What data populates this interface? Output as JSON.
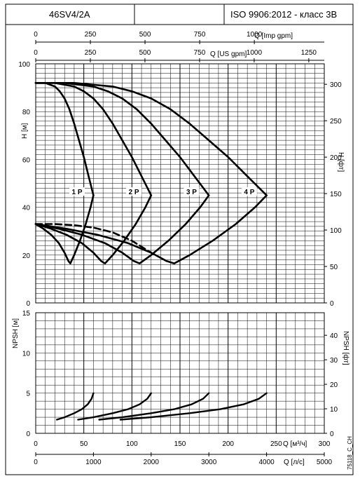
{
  "header": {
    "model": "46SV4/2A",
    "standard": "ISO 9906:2012 - класс 3В"
  },
  "footer_code": "75118_C_CH",
  "chart_data": [
    {
      "type": "line",
      "title": "",
      "xlabel": "Q [м³/ч]",
      "ylabel": "H [м]",
      "y2label": "H [фт]",
      "xlim": [
        0,
        300
      ],
      "ylim": [
        0,
        100
      ],
      "y2lim": [
        0,
        328.1
      ],
      "grid": true,
      "top_axes": [
        {
          "label": "Q [Imp gpm]",
          "lim": [
            0,
            1320
          ],
          "ticks": [
            0,
            250,
            500,
            750,
            1000
          ]
        },
        {
          "label": "Q [US gpm]",
          "lim": [
            0,
            1320.9
          ],
          "ticks": [
            0,
            250,
            500,
            750,
            1000,
            1250
          ]
        }
      ],
      "y_ticks": [
        0,
        20,
        40,
        60,
        80,
        100
      ],
      "y2_ticks": [
        0,
        50,
        100,
        150,
        200,
        250,
        300
      ],
      "series": [
        {
          "name": "1 P",
          "style": "head",
          "x": [
            0,
            10,
            20,
            25,
            30,
            35,
            40,
            45,
            50,
            55,
            60
          ],
          "y": [
            92,
            92,
            90.5,
            88.5,
            85.5,
            81,
            75,
            68,
            61,
            53,
            45
          ]
        },
        {
          "name": "2 P",
          "style": "head",
          "x": [
            0,
            20,
            40,
            50,
            60,
            70,
            80,
            90,
            100,
            110,
            120
          ],
          "y": [
            92,
            92,
            90.5,
            88.5,
            85.5,
            81,
            75,
            68,
            61,
            53,
            45
          ]
        },
        {
          "name": "3 P",
          "style": "head",
          "x": [
            0,
            30,
            60,
            75,
            90,
            105,
            120,
            135,
            150,
            165,
            180
          ],
          "y": [
            92,
            92,
            90.5,
            88.5,
            85.5,
            81,
            75,
            68,
            61,
            53,
            45
          ]
        },
        {
          "name": "4 P",
          "style": "head",
          "x": [
            0,
            40,
            80,
            100,
            120,
            140,
            160,
            180,
            200,
            220,
            240
          ],
          "y": [
            92,
            92,
            90.5,
            88.5,
            85.5,
            81,
            75,
            68,
            61,
            53,
            45
          ]
        },
        {
          "name": "",
          "style": "efficiency",
          "x": [
            0,
            8,
            16,
            24,
            30,
            34,
            36,
            40,
            46,
            52,
            57,
            60
          ],
          "y": [
            33,
            31,
            28.5,
            25,
            21,
            17.5,
            16.5,
            20,
            26,
            33,
            40,
            45
          ]
        },
        {
          "name": "",
          "style": "efficiency",
          "x": [
            0,
            16,
            32,
            48,
            60,
            68,
            72,
            80,
            92,
            104,
            114,
            120
          ],
          "y": [
            33,
            31,
            28.5,
            25,
            21,
            17.5,
            16.5,
            20,
            26,
            33,
            40,
            45
          ]
        },
        {
          "name": "",
          "style": "efficiency",
          "x": [
            0,
            24,
            48,
            72,
            90,
            102,
            108,
            120,
            138,
            156,
            171,
            180
          ],
          "y": [
            33,
            31,
            28.5,
            25,
            21,
            17.5,
            16.5,
            20,
            26,
            33,
            40,
            45
          ]
        },
        {
          "name": "",
          "style": "efficiency",
          "x": [
            0,
            32,
            64,
            96,
            120,
            136,
            144,
            160,
            184,
            208,
            228,
            240
          ],
          "y": [
            33,
            31,
            28.5,
            25,
            21,
            17.5,
            16.5,
            20,
            26,
            33,
            40,
            45
          ]
        },
        {
          "name": "",
          "style": "dashed",
          "x": [
            0,
            20,
            40,
            60,
            80,
            100,
            120
          ],
          "y": [
            33,
            33,
            32.5,
            31.5,
            29.5,
            26,
            21
          ]
        }
      ],
      "curve_labels": [
        {
          "text": "1 P",
          "x": 43,
          "y": 46
        },
        {
          "text": "2 P",
          "x": 102,
          "y": 46
        },
        {
          "text": "3 P",
          "x": 162,
          "y": 46
        },
        {
          "text": "4 P",
          "x": 222,
          "y": 46
        }
      ]
    },
    {
      "type": "line",
      "title": "",
      "xlabel": "Q [м³/ч]",
      "xlabel2": "Q [л/с]",
      "ylabel": "NPSH [м]",
      "y2label": "NPSH [фт]",
      "xlim": [
        0,
        300
      ],
      "ylim": [
        0,
        15
      ],
      "y2lim": [
        0,
        49.2
      ],
      "grid": true,
      "x_ticks": [
        0,
        50,
        100,
        150,
        200,
        250,
        300
      ],
      "x2_lim": [
        0,
        5000
      ],
      "x2_ticks": [
        0,
        1000,
        2000,
        3000,
        4000,
        5000
      ],
      "y_ticks": [
        0,
        5,
        10,
        15
      ],
      "y2_ticks": [
        0,
        10,
        20,
        30,
        40
      ],
      "series": [
        {
          "name": "1 P",
          "x": [
            22,
            30,
            40,
            48,
            54,
            58,
            60
          ],
          "y": [
            1.7,
            2.0,
            2.5,
            3.0,
            3.6,
            4.3,
            5.0
          ]
        },
        {
          "name": "2 P",
          "x": [
            44,
            60,
            80,
            96,
            108,
            116,
            120
          ],
          "y": [
            1.7,
            2.0,
            2.5,
            3.0,
            3.6,
            4.3,
            5.0
          ]
        },
        {
          "name": "3 P",
          "x": [
            66,
            90,
            120,
            144,
            162,
            174,
            180
          ],
          "y": [
            1.7,
            2.0,
            2.5,
            3.0,
            3.6,
            4.3,
            5.0
          ]
        },
        {
          "name": "4 P",
          "x": [
            88,
            120,
            160,
            192,
            216,
            232,
            240
          ],
          "y": [
            1.7,
            2.0,
            2.5,
            3.0,
            3.6,
            4.3,
            5.0
          ]
        }
      ]
    }
  ]
}
